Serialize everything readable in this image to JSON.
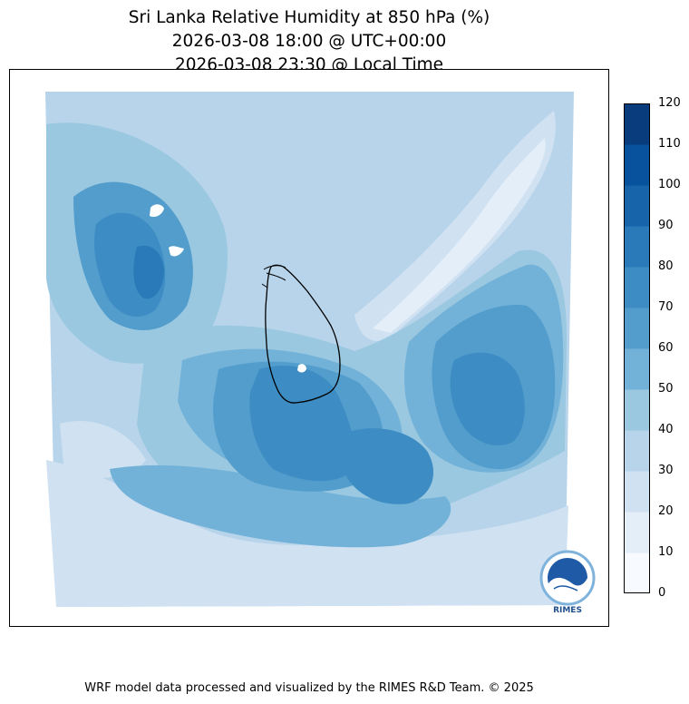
{
  "title": {
    "line1": "Sri Lanka Relative Humidity at 850 hPa (%)",
    "line2": "2026-03-08 18:00 @ UTC+00:00",
    "line3": "2026-03-08 23:30 @ Local Time"
  },
  "colorbar": {
    "ticks": [
      "0",
      "10",
      "20",
      "30",
      "40",
      "50",
      "60",
      "70",
      "80",
      "90",
      "100",
      "110",
      "120"
    ],
    "colors": [
      "#f7fbff",
      "#e3eef9",
      "#d0e1f2",
      "#b7d4ea",
      "#9ac8e0",
      "#73b2d8",
      "#529dcc",
      "#3d8dc4",
      "#2a7ab9",
      "#1764ab",
      "#08519c",
      "#083c7d"
    ]
  },
  "logo": {
    "text": "RIMES"
  },
  "footer": "WRF model data processed and visualized by the RIMES R&D Team. © 2025"
}
